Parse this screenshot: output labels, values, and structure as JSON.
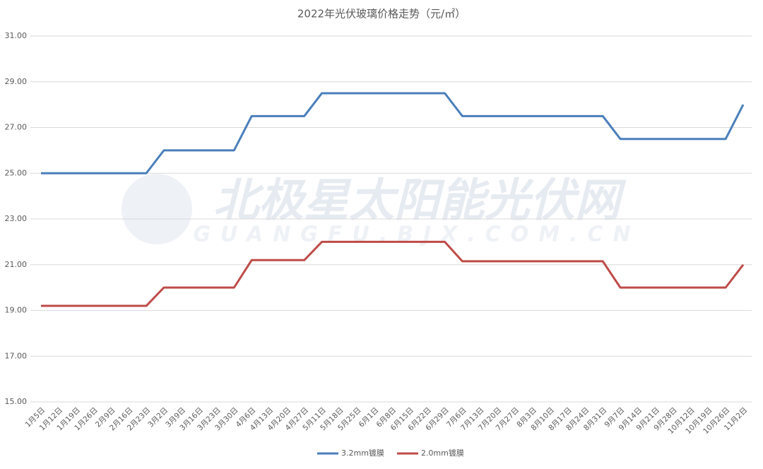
{
  "chart_data": {
    "type": "line",
    "title": "2022年光伏玻璃价格走势（元/㎡）",
    "watermark": "北极星太阳能光伏网",
    "watermark_sub": "GUANGFU.BJX.COM.CN",
    "categories": [
      "1月5日",
      "1月12日",
      "1月19日",
      "1月26日",
      "2月9日",
      "2月16日",
      "2月23日",
      "3月2日",
      "3月9日",
      "3月16日",
      "3月23日",
      "3月30日",
      "4月6日",
      "4月13日",
      "4月20日",
      "4月27日",
      "5月11日",
      "5月18日",
      "5月25日",
      "6月1日",
      "6月8日",
      "6月15日",
      "6月22日",
      "6月29日",
      "7月6日",
      "7月13日",
      "7月20日",
      "7月27日",
      "8月3日",
      "8月10日",
      "8月17日",
      "8月24日",
      "8月31日",
      "9月7日",
      "9月14日",
      "9月21日",
      "9月28日",
      "10月12日",
      "10月19日",
      "10月26日",
      "11月2日"
    ],
    "series": [
      {
        "name": "3.2mm镀膜",
        "color": "#4a7ebb",
        "values": [
          25,
          25,
          25,
          25,
          25,
          25,
          25,
          26,
          26,
          26,
          26,
          26,
          27.5,
          27.5,
          27.5,
          27.5,
          28.5,
          28.5,
          28.5,
          28.5,
          28.5,
          28.5,
          28.5,
          28.5,
          27.5,
          27.5,
          27.5,
          27.5,
          27.5,
          27.5,
          27.5,
          27.5,
          27.5,
          26.5,
          26.5,
          26.5,
          26.5,
          26.5,
          26.5,
          26.5,
          28
        ]
      },
      {
        "name": "2.0mm镀膜",
        "color": "#be4b48",
        "values": [
          19.2,
          19.2,
          19.2,
          19.2,
          19.2,
          19.2,
          19.2,
          20,
          20,
          20,
          20,
          20,
          21.2,
          21.2,
          21.2,
          21.2,
          22,
          22,
          22,
          22,
          22,
          22,
          22,
          22,
          21.15,
          21.15,
          21.15,
          21.15,
          21.15,
          21.15,
          21.15,
          21.15,
          21.15,
          20,
          20,
          20,
          20,
          20,
          20,
          20,
          21
        ]
      }
    ],
    "ylim": [
      15,
      31
    ],
    "yticks": [
      {
        "value": 15,
        "label": "15.00"
      },
      {
        "value": 17,
        "label": "17.00"
      },
      {
        "value": 19,
        "label": "19.00"
      },
      {
        "value": 21,
        "label": "21.00"
      },
      {
        "value": 23,
        "label": "23.00"
      },
      {
        "value": 25,
        "label": "25.00"
      },
      {
        "value": 27,
        "label": "27.00"
      },
      {
        "value": 29,
        "label": "29.00"
      },
      {
        "value": 31,
        "label": "31.00"
      }
    ],
    "grid": true,
    "legend": "bottom"
  }
}
